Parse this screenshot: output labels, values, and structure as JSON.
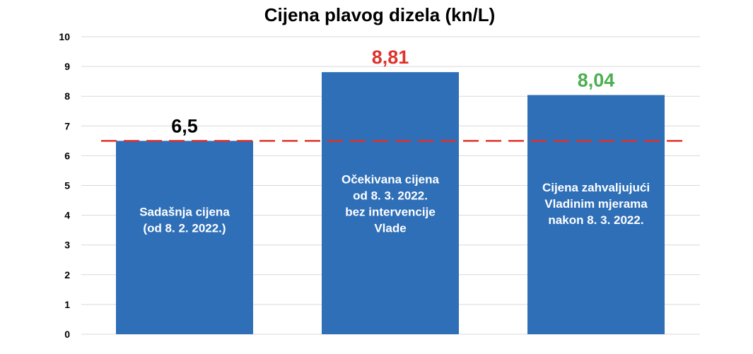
{
  "chart_data": {
    "type": "bar",
    "title": "Cijena plavog dizela (kn/L)",
    "ylim": [
      0,
      10
    ],
    "yticks": [
      "0",
      "1",
      "2",
      "3",
      "4",
      "5",
      "6",
      "7",
      "8",
      "9",
      "10"
    ],
    "grid": true,
    "categories": [
      [
        "Sadašnja cijena",
        "(od 8. 2. 2022.)"
      ],
      [
        "Očekivana cijena",
        "od 8. 3. 2022.",
        "bez intervencije",
        "Vlade"
      ],
      [
        "Cijena zahvaljujući",
        "Vladinim mjerama",
        "nakon 8. 3. 2022."
      ]
    ],
    "values": [
      6.5,
      8.81,
      8.04
    ],
    "value_labels": [
      "6,5",
      "8,81",
      "8,04"
    ],
    "value_label_colors": [
      "#000000",
      "#e0322b",
      "#4caf50"
    ],
    "bar_color": "#2e6fb8",
    "reference_line": {
      "value": 6.5,
      "color": "#e0322b",
      "style": "dashed"
    }
  }
}
